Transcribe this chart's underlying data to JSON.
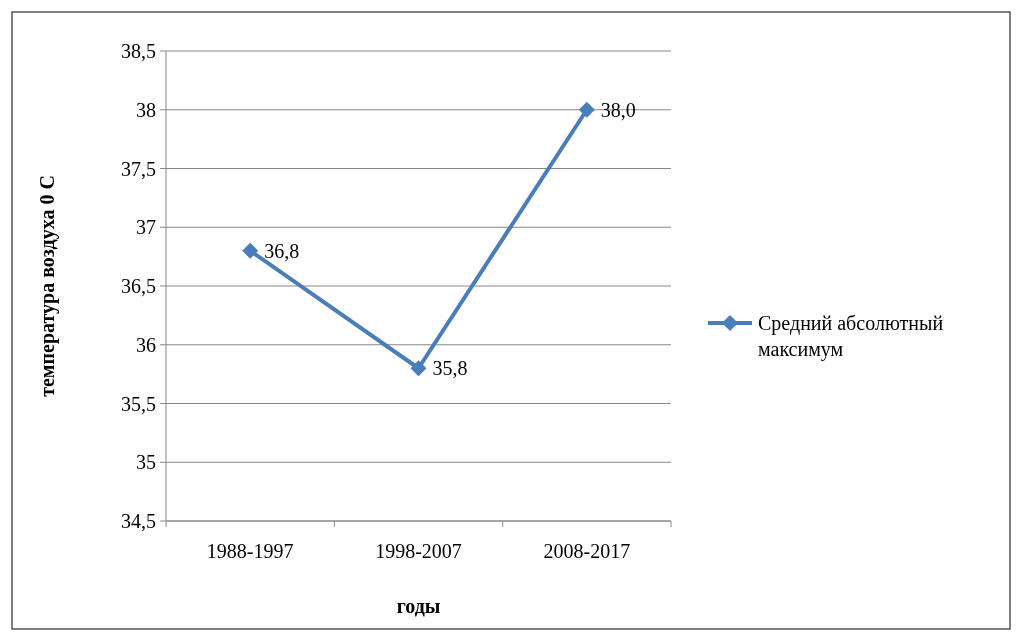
{
  "chart_data": {
    "type": "line",
    "xlabel": "годы",
    "ylabel": "температура воздуха 0 С",
    "categories": [
      "1988-1997",
      "1998-2007",
      "2008-2017"
    ],
    "series": [
      {
        "name": "Средний абсолютный максимум",
        "color": "#4a7ebb",
        "values": [
          36.8,
          35.8,
          38.0
        ],
        "value_labels": [
          "36,8",
          "35,8",
          "38,0"
        ]
      }
    ],
    "ylim": [
      34.5,
      38.5
    ],
    "yticks": [
      {
        "value": 34.5,
        "label": "34,5"
      },
      35,
      {
        "value": 35.5,
        "label": "35,5"
      },
      36,
      {
        "value": 36.5,
        "label": "36,5"
      },
      37,
      {
        "value": 37.5,
        "label": "37,5"
      },
      38,
      {
        "value": 38.5,
        "label": "38,5"
      }
    ],
    "grid": "y",
    "legend": "right",
    "marker": "diamond",
    "line_style": "solid"
  }
}
